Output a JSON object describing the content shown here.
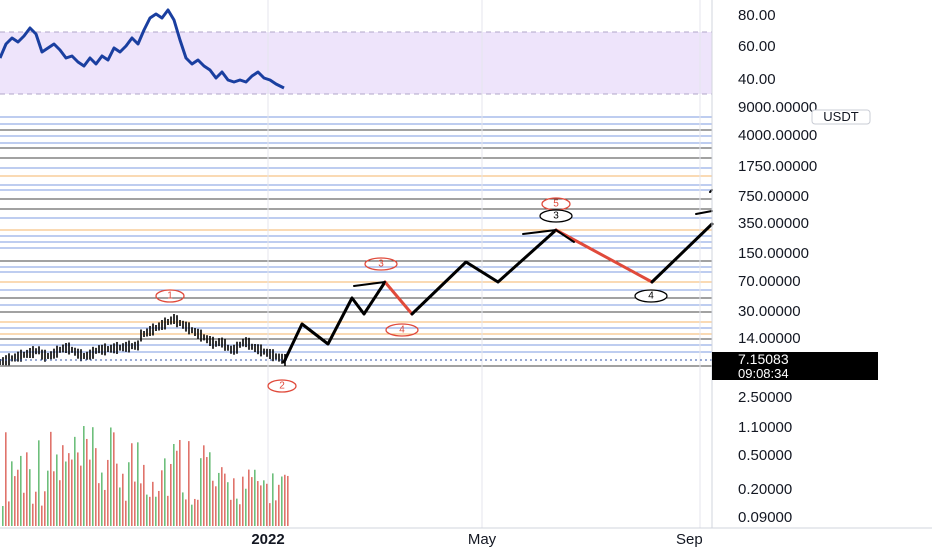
{
  "chart_data": {
    "type": "line",
    "title": "",
    "currency_label": "USDT",
    "price_axis_scale": "log",
    "price_ticks": [
      "9000.00000",
      "4000.00000",
      "1750.00000",
      "750.00000",
      "350.00000",
      "150.00000",
      "70.00000",
      "30.00000",
      "14.00000",
      "2.50000",
      "1.10000",
      "0.50000",
      "0.20000",
      "0.09000"
    ],
    "oscillator_ticks": [
      "80.00",
      "60.00",
      "40.00"
    ],
    "oscillator_band": [
      40,
      70
    ],
    "current_price": "7.15083",
    "countdown": "09:08:34",
    "time_labels": [
      "2022",
      "May",
      "Sep"
    ],
    "wave_labels": {
      "red": [
        "1",
        "2",
        "3",
        "4",
        "5"
      ],
      "black": [
        "3",
        "4"
      ]
    },
    "colors": {
      "price_bars": "#000000",
      "projection": "#000000",
      "correction": "#e04a3b",
      "oscillator_line": "#1a3fa0",
      "oscillator_band": "#eee4fb",
      "volume_up": "#6dbf7b",
      "volume_down": "#e0736b",
      "level_black": "#444444",
      "level_blue": "#7d9be0",
      "level_orange": "#f5b46a",
      "wave_red": "#e04a3b",
      "price_tag_bg": "#000000"
    }
  }
}
